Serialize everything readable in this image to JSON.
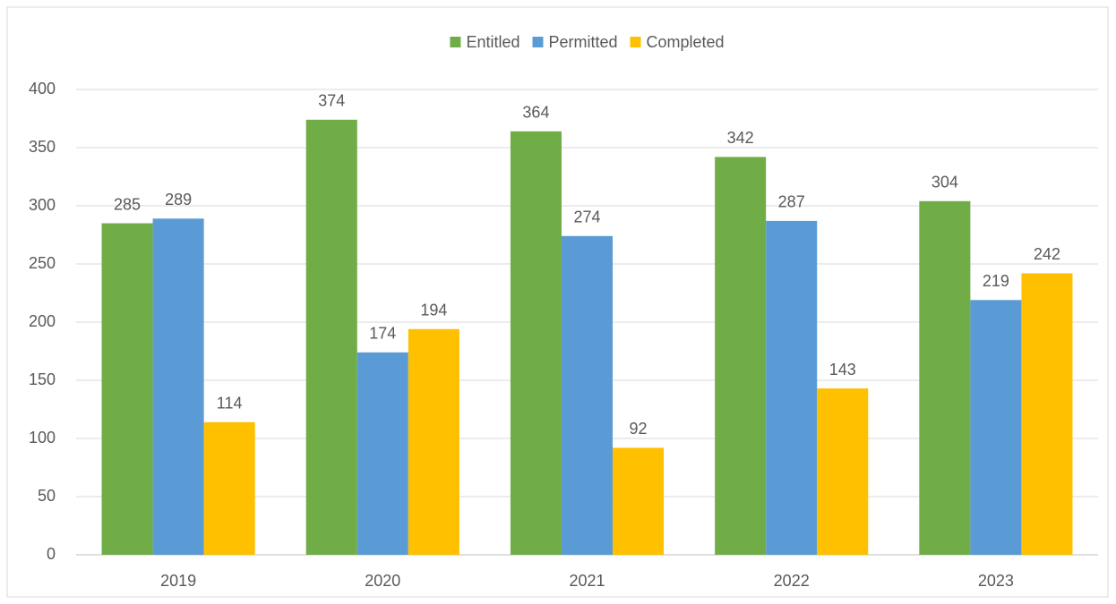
{
  "chart_data": {
    "type": "bar",
    "categories": [
      "2019",
      "2020",
      "2021",
      "2022",
      "2023"
    ],
    "series": [
      {
        "name": "Entitled",
        "color": "#70ad47",
        "values": [
          285,
          374,
          364,
          342,
          304
        ]
      },
      {
        "name": "Permitted",
        "color": "#5b9bd5",
        "values": [
          289,
          174,
          274,
          287,
          219
        ]
      },
      {
        "name": "Completed",
        "color": "#ffc000",
        "values": [
          114,
          194,
          92,
          143,
          242
        ]
      }
    ],
    "ylim": [
      0,
      400
    ],
    "yticks": [
      0,
      50,
      100,
      150,
      200,
      250,
      300,
      350,
      400
    ],
    "grid": true,
    "legend": "top",
    "data_labels": true
  }
}
